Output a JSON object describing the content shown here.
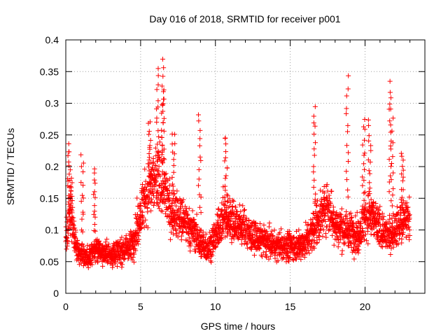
{
  "chart_data": {
    "type": "scatter",
    "title": "Day 016 of 2018, SRMTID for receiver p001",
    "xlabel": "GPS time / hours",
    "ylabel": "SRMTID / TECUs",
    "xlim": [
      0,
      24
    ],
    "ylim": [
      0,
      0.4
    ],
    "xticks": [
      0,
      5,
      10,
      15,
      20
    ],
    "xtick_labels": [
      "0",
      "5",
      "10",
      "15",
      "20"
    ],
    "yticks": [
      0,
      0.05,
      0.1,
      0.15,
      0.2,
      0.25,
      0.3,
      0.35,
      0.4
    ],
    "ytick_labels": [
      "0",
      "0.05",
      "0.1",
      "0.15",
      "0.2",
      "0.25",
      "0.3",
      "0.35",
      "0.4"
    ],
    "grid": true,
    "marker": "plus",
    "color": "#ff0000",
    "x_range": [
      0,
      23
    ],
    "sampling_hours": 0.012,
    "baseline": [
      [
        0,
        0.09
      ],
      [
        0.3,
        0.13
      ],
      [
        0.7,
        0.07
      ],
      [
        1.2,
        0.06
      ],
      [
        1.5,
        0.055
      ],
      [
        2.0,
        0.07
      ],
      [
        2.5,
        0.065
      ],
      [
        3.0,
        0.06
      ],
      [
        3.5,
        0.065
      ],
      [
        4.0,
        0.07
      ],
      [
        4.5,
        0.08
      ],
      [
        5.0,
        0.13
      ],
      [
        5.5,
        0.16
      ],
      [
        6.0,
        0.18
      ],
      [
        6.5,
        0.17
      ],
      [
        7.0,
        0.13
      ],
      [
        7.5,
        0.12
      ],
      [
        8.0,
        0.11
      ],
      [
        8.5,
        0.1
      ],
      [
        9.0,
        0.08
      ],
      [
        9.5,
        0.07
      ],
      [
        10.0,
        0.09
      ],
      [
        10.5,
        0.12
      ],
      [
        11.0,
        0.12
      ],
      [
        11.5,
        0.11
      ],
      [
        12.0,
        0.1
      ],
      [
        12.5,
        0.09
      ],
      [
        13.0,
        0.085
      ],
      [
        13.5,
        0.08
      ],
      [
        14.0,
        0.075
      ],
      [
        14.5,
        0.075
      ],
      [
        15.0,
        0.075
      ],
      [
        15.5,
        0.075
      ],
      [
        16.0,
        0.08
      ],
      [
        16.5,
        0.1
      ],
      [
        17.0,
        0.12
      ],
      [
        17.5,
        0.14
      ],
      [
        18.0,
        0.11
      ],
      [
        18.5,
        0.1
      ],
      [
        19.0,
        0.1
      ],
      [
        19.5,
        0.09
      ],
      [
        20.0,
        0.12
      ],
      [
        20.5,
        0.12
      ],
      [
        21.0,
        0.1
      ],
      [
        21.5,
        0.09
      ],
      [
        22.0,
        0.1
      ],
      [
        22.5,
        0.11
      ],
      [
        23.0,
        0.12
      ]
    ],
    "peaks": [
      [
        0.2,
        0.235
      ],
      [
        0.35,
        0.19
      ],
      [
        1.1,
        0.215
      ],
      [
        1.9,
        0.195
      ],
      [
        5.6,
        0.27
      ],
      [
        6.15,
        0.35
      ],
      [
        6.45,
        0.367
      ],
      [
        6.5,
        0.32
      ],
      [
        7.2,
        0.255
      ],
      [
        8.95,
        0.28
      ],
      [
        10.7,
        0.25
      ],
      [
        16.6,
        0.295
      ],
      [
        18.8,
        0.34
      ],
      [
        19.9,
        0.275
      ],
      [
        20.3,
        0.27
      ],
      [
        21.7,
        0.33
      ],
      [
        21.8,
        0.305
      ],
      [
        22.5,
        0.22
      ]
    ]
  }
}
